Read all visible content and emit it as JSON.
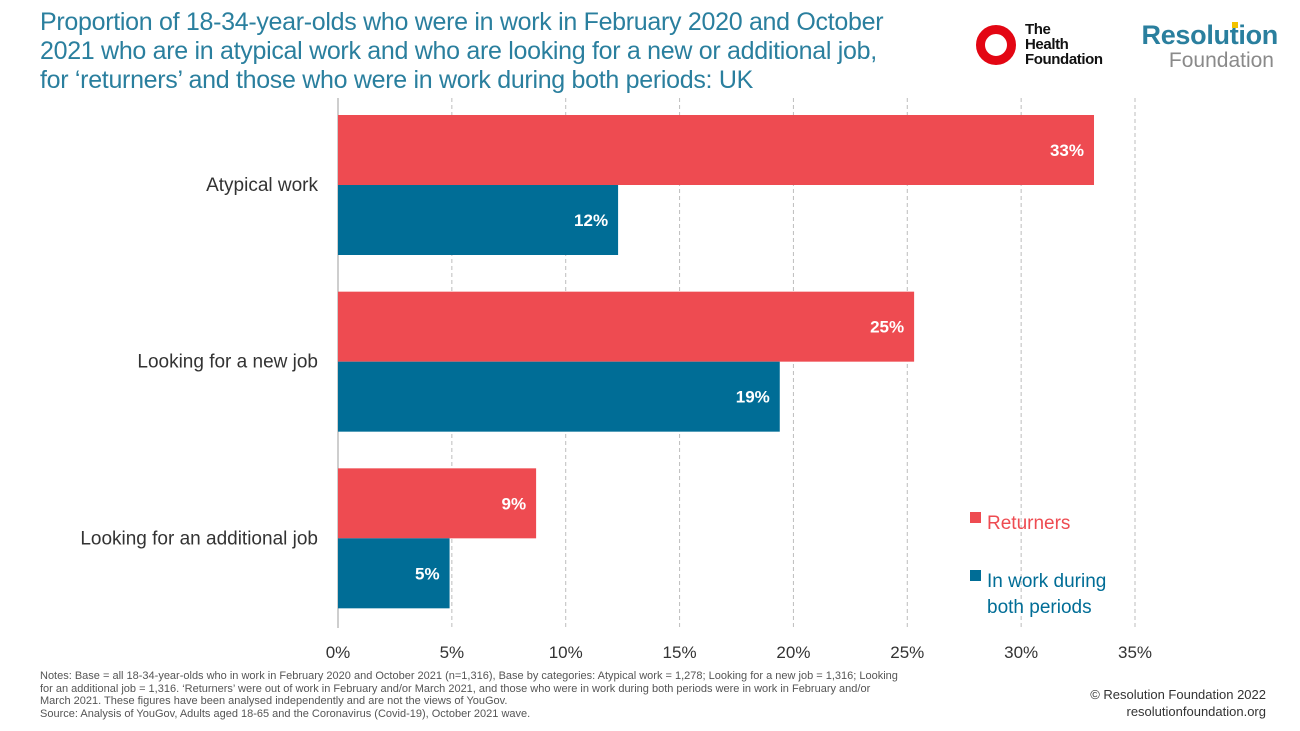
{
  "title_lines": [
    "Proportion of 18-34-year-olds who were in work in February 2020 and October",
    "2021 who are in atypical work and who are looking for a new or additional job,",
    "for ‘returners’ and those who were in work during both periods: UK"
  ],
  "logos": {
    "health_foundation": [
      "The",
      "Health",
      "Foundation"
    ],
    "resolution_foundation": [
      "Resolution",
      "Foundation"
    ]
  },
  "colors": {
    "returners": "#ee4b51",
    "in_work": "#006d96",
    "title": "#2a7f9e"
  },
  "chart_data": {
    "type": "bar",
    "orientation": "horizontal",
    "categories": [
      "Atypical work",
      "Looking for a new job",
      "Looking for an additional job"
    ],
    "series": [
      {
        "name": "Returners",
        "values": [
          33,
          25,
          9
        ],
        "labels": [
          "33%",
          "25%",
          "9%"
        ],
        "color": "#ee4b51"
      },
      {
        "name": "In work during both periods",
        "name_lines": [
          "In work during",
          "both periods"
        ],
        "values": [
          12,
          19,
          5
        ],
        "labels": [
          "12%",
          "19%",
          "5%"
        ],
        "color": "#006d96"
      }
    ],
    "value_precise": [
      [
        33.2,
        25.3,
        8.7
      ],
      [
        12.3,
        19.4,
        4.9
      ]
    ],
    "xlim": [
      0,
      35
    ],
    "xticks": [
      "0%",
      "5%",
      "10%",
      "15%",
      "20%",
      "25%",
      "30%",
      "35%"
    ],
    "grid": "vertical dashed",
    "legend_position": "bottom-right"
  },
  "notes": [
    "Notes: Base = all 18-34-year-olds  who in work in February 2020 and October 2021 (n=1,316), Base by categories: Atypical work = 1,278; Looking for a new job = 1,316; Looking",
    "for an additional  job = 1,316. ‘Returners’ were out of work in February and/or March 2021, and those who were in work during both periods were in work in February and/or",
    "March 2021. These figures have been analysed independently and are not the views of YouGov.",
    "Source: Analysis of YouGov,  Adults aged 18-65  and the Coronavirus (Covid-19),  October 2021 wave."
  ],
  "copyright": [
    "© Resolution Foundation 2022",
    "resolutionfoundation.org"
  ]
}
